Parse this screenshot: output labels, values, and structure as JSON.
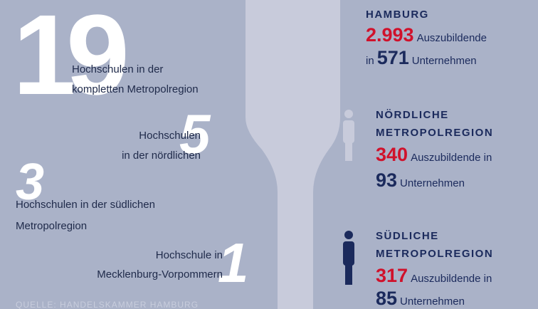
{
  "universities": [
    {
      "number": "19",
      "lines": [
        "Hochschulen in der",
        "kompletten Metropolregion"
      ]
    },
    {
      "number": "5",
      "lines": [
        "Hochschulen",
        "in der nördlichen"
      ]
    },
    {
      "number": "3",
      "lines": [
        "Hochschulen in der südlichen",
        "Metropolregion"
      ]
    },
    {
      "number": "1",
      "lines": [
        "Hochschule in",
        "Mecklenburg-Vorpommern"
      ]
    }
  ],
  "source": "QUELLE: HANDELSKAMMER HAMBURG",
  "regions": [
    {
      "title": [
        "HAMBURG"
      ],
      "trainees": "2.993",
      "trainees_text": "Auszubildende",
      "companies_prefix": "in",
      "companies": "571",
      "companies_text": "Unternehmen"
    },
    {
      "title": [
        "NÖRDLICHE",
        "METROPOLREGION"
      ],
      "trainees": "340",
      "trainees_text": "Auszubildende in",
      "companies": "93",
      "companies_text": "Unternehmen"
    },
    {
      "title": [
        "SÜDLICHE",
        "METROPOLREGION"
      ],
      "trainees": "317",
      "trainees_text": "Auszubildende in",
      "companies": "85",
      "companies_text": "Unternehmen"
    }
  ]
}
